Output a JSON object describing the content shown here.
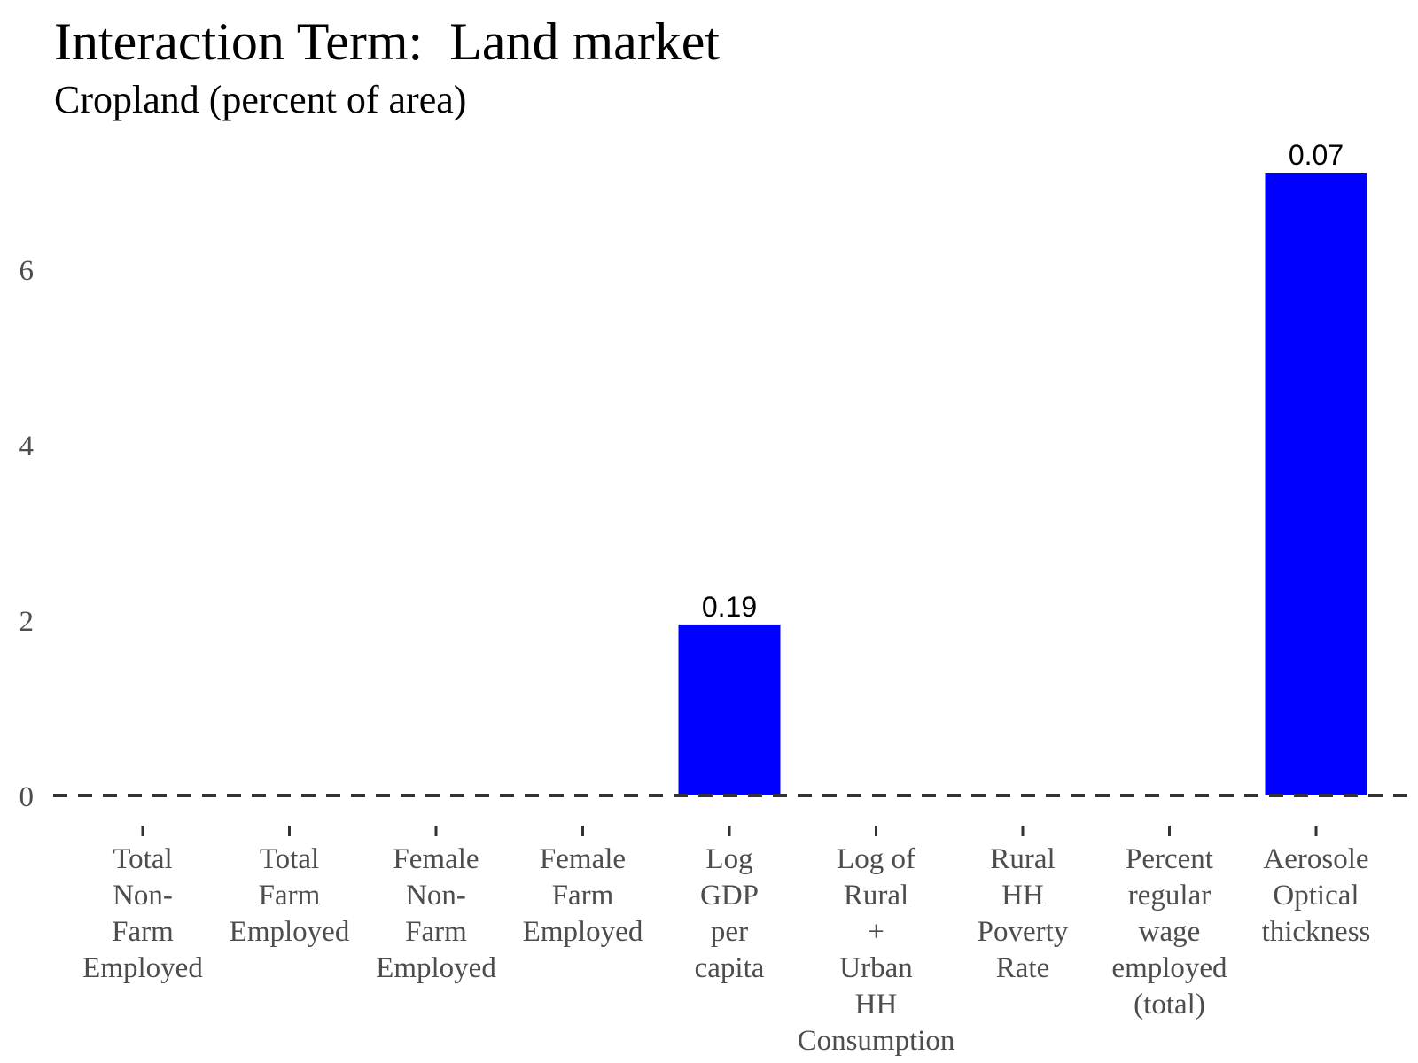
{
  "title": "Interaction Term:  Land market",
  "subtitle": "Cropland (percent of area)",
  "chart_data": {
    "type": "bar",
    "title": "Interaction Term:  Land market",
    "subtitle": "Cropland (percent of area)",
    "xlabel": "",
    "ylabel": "",
    "categories": [
      [
        "Total",
        "Non-",
        "Farm",
        "Employed"
      ],
      [
        "Total",
        "Farm",
        "Employed"
      ],
      [
        "Female",
        "Non-",
        "Farm",
        "Employed"
      ],
      [
        "Female",
        "Farm",
        "Employed"
      ],
      [
        "Log",
        "GDP",
        "per",
        "capita"
      ],
      [
        "Log of",
        "Rural",
        "+",
        "Urban",
        "HH",
        "Consumption"
      ],
      [
        "Rural",
        "HH",
        "Poverty",
        "Rate"
      ],
      [
        "Percent",
        "regular",
        "wage",
        "employed",
        "(total)"
      ],
      [
        "Aerosole",
        "Optical",
        "thickness"
      ]
    ],
    "values": [
      null,
      null,
      null,
      null,
      1.95,
      null,
      null,
      null,
      7.1
    ],
    "data_labels": [
      null,
      null,
      null,
      null,
      "0.19",
      null,
      null,
      null,
      "0.07"
    ],
    "y_ticks": [
      0,
      2,
      4,
      6
    ],
    "ylim": [
      0,
      7.4
    ],
    "reference_line": {
      "y": 0,
      "style": "dashed"
    },
    "grid": false,
    "legend": "none",
    "bar_color": "#0000ff"
  }
}
